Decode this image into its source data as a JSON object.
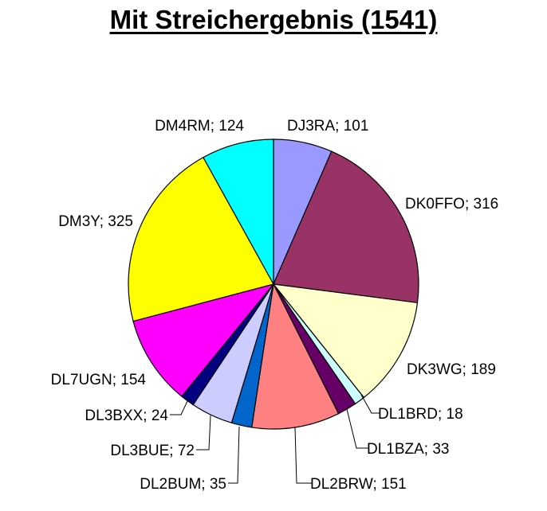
{
  "chart_data": {
    "type": "pie",
    "title": "Mit Streichergebnis (1541)",
    "slices": [
      {
        "label": "DJ3RA",
        "value": 101,
        "text": "DJ3RA; 101",
        "color": "#9999FF"
      },
      {
        "label": "DK0FFO",
        "value": 316,
        "text": "DK0FFO; 316",
        "color": "#993366"
      },
      {
        "label": "DK3WG",
        "value": 189,
        "text": "DK3WG; 189",
        "color": "#FFFFCC"
      },
      {
        "label": "DL1BRD",
        "value": 18,
        "text": "DL1BRD; 18",
        "color": "#CCFFFF"
      },
      {
        "label": "DL1BZA",
        "value": 33,
        "text": "DL1BZA; 33",
        "color": "#660066"
      },
      {
        "label": "DL2BRW",
        "value": 151,
        "text": "DL2BRW; 151",
        "color": "#FF8080"
      },
      {
        "label": "DL2BUM",
        "value": 35,
        "text": "DL2BUM; 35",
        "color": "#0066CC"
      },
      {
        "label": "DL3BUE",
        "value": 72,
        "text": "DL3BUE; 72",
        "color": "#CCCCFF"
      },
      {
        "label": "DL3BXX",
        "value": 24,
        "text": "DL3BXX; 24",
        "color": "#000080"
      },
      {
        "label": "DL7UGN",
        "value": 154,
        "text": "DL7UGN; 154",
        "color": "#FF00FF"
      },
      {
        "label": "DM3Y",
        "value": 325,
        "text": "DM3Y; 325",
        "color": "#FFFF00"
      },
      {
        "label": "DM4RM",
        "value": 124,
        "text": "DM4RM; 124",
        "color": "#00FFFF"
      }
    ]
  }
}
